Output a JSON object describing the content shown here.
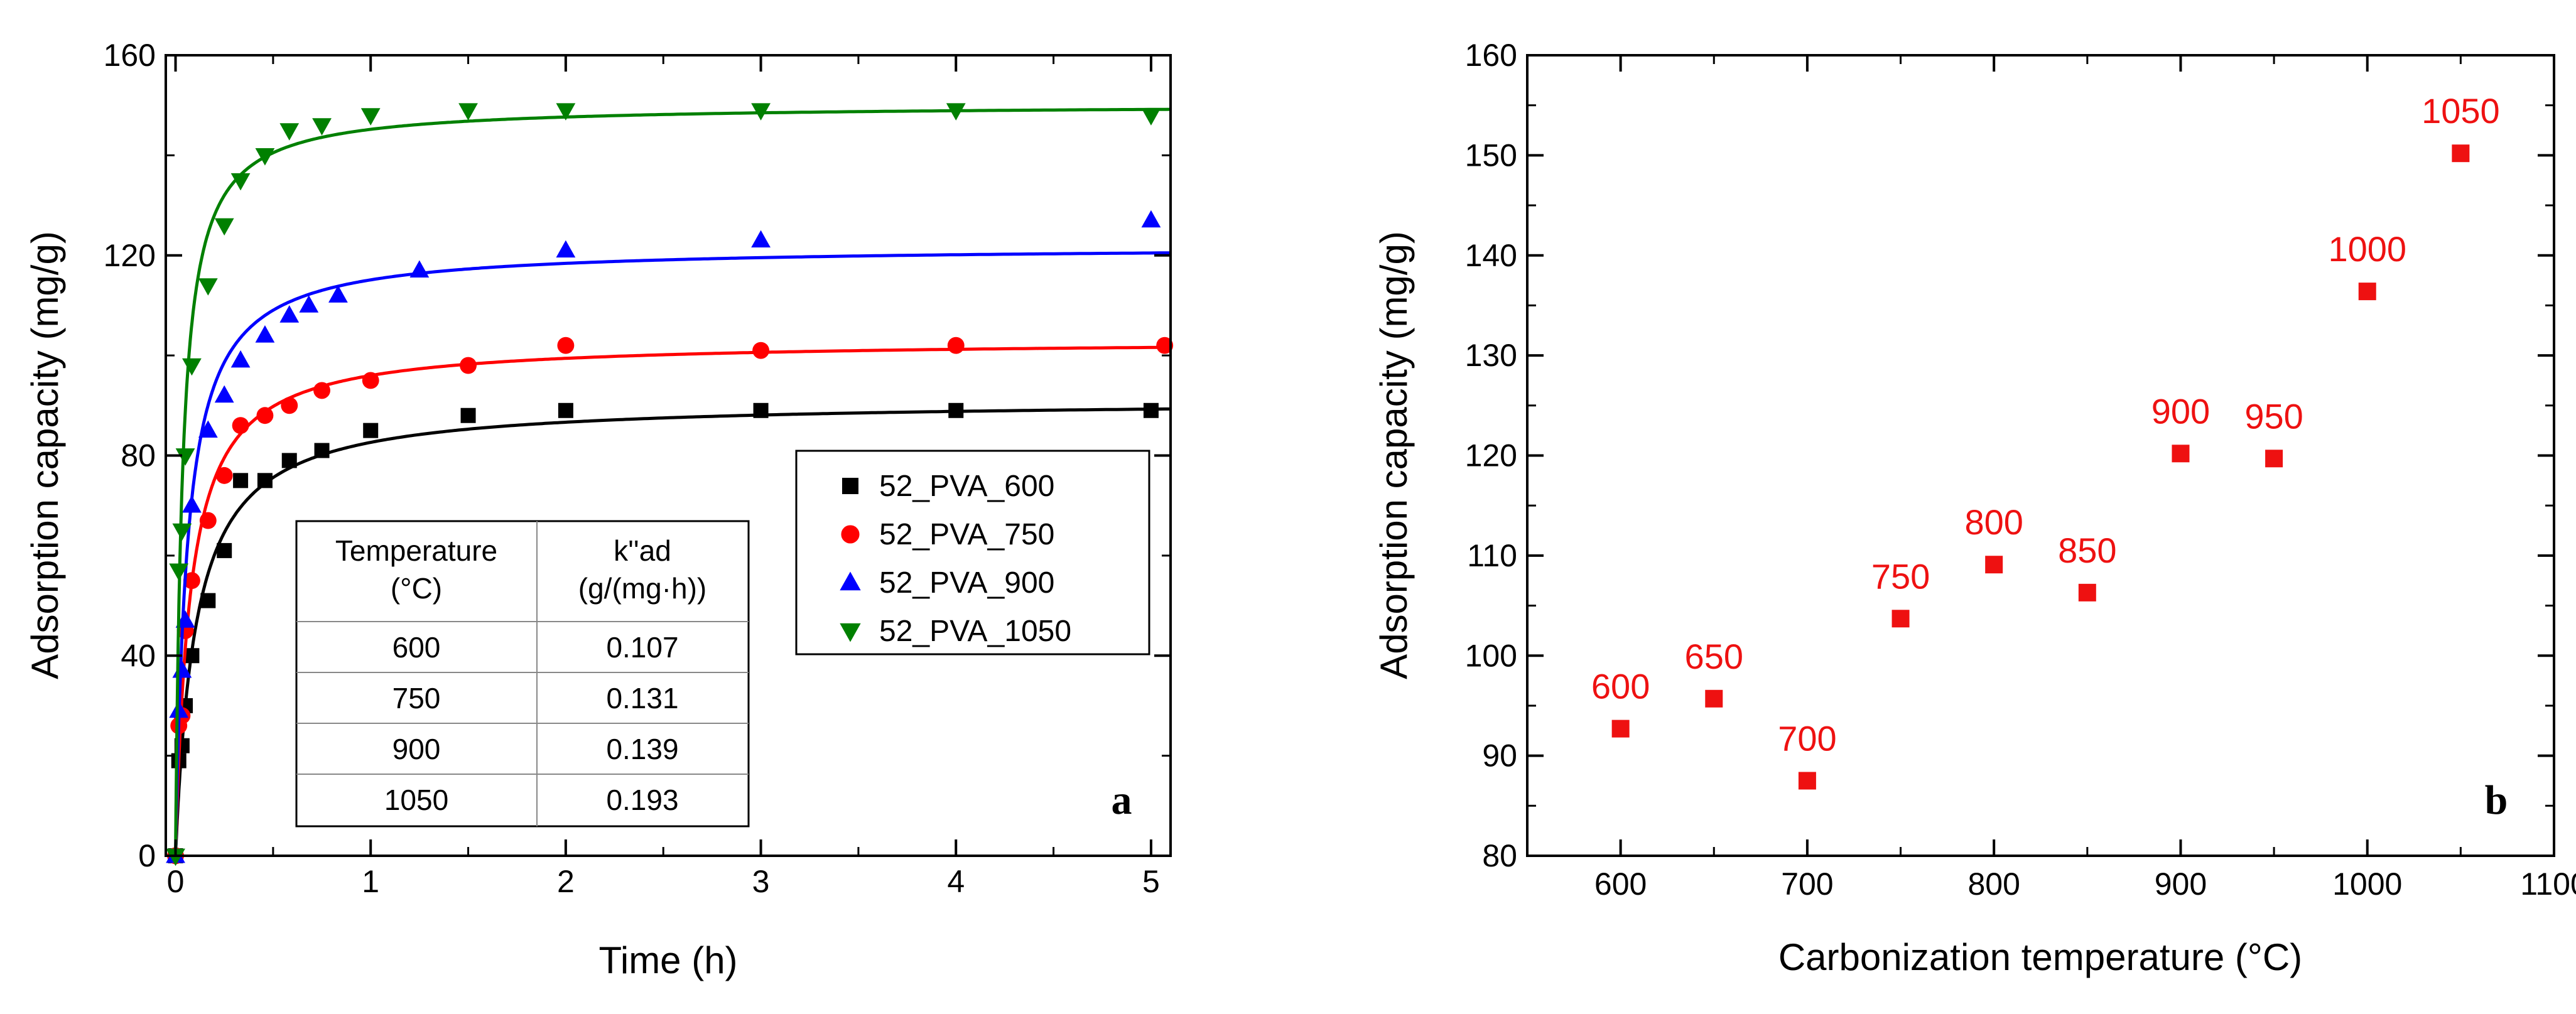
{
  "chart_data": [
    {
      "type": "scatter",
      "panel_label": "a",
      "xlabel": "Time (h)",
      "ylabel": "Adsorption capacity (mg/g)",
      "xlim": [
        -0.05,
        5.1
      ],
      "ylim": [
        0,
        160
      ],
      "xticks": [
        0,
        1,
        2,
        3,
        4,
        5
      ],
      "yticks": [
        0,
        40,
        80,
        120,
        160
      ],
      "x_tick_labels": [
        "0",
        "1",
        "2",
        "3",
        "4",
        "5"
      ],
      "y_tick_labels": [
        "0",
        "40",
        "80",
        "120",
        "160"
      ],
      "legend_position": "center-right",
      "series": [
        {
          "name": "52_PVA_600",
          "color": "#000000",
          "marker": "square",
          "qe": 91.1,
          "k": 0.107,
          "x": [
            0,
            0.0167,
            0.0333,
            0.05,
            0.0833,
            0.1667,
            0.25,
            0.3333,
            0.4583,
            0.5833,
            0.75,
            1,
            1.5,
            2,
            3,
            4,
            5
          ],
          "y": [
            0,
            19,
            22,
            30,
            40,
            51,
            61,
            75,
            75,
            79,
            81,
            85,
            88,
            89,
            89,
            89,
            89
          ]
        },
        {
          "name": "52_PVA_750",
          "color": "#ff0000",
          "marker": "circle",
          "qe": 103.1,
          "k": 0.131,
          "x": [
            0,
            0.0167,
            0.0333,
            0.05,
            0.0833,
            0.1667,
            0.25,
            0.3333,
            0.4583,
            0.5833,
            0.75,
            1,
            1.5,
            2,
            3,
            4,
            5.07
          ],
          "y": [
            0,
            26,
            28,
            45,
            55,
            67,
            76,
            86,
            88,
            90,
            93,
            95,
            98,
            102,
            101,
            102,
            102
          ]
        },
        {
          "name": "52_PVA_900",
          "color": "#0000ff",
          "marker": "triangle-up",
          "qe": 121.9,
          "k": 0.139,
          "x": [
            0,
            0.0167,
            0.0333,
            0.05,
            0.0833,
            0.1667,
            0.25,
            0.3333,
            0.4583,
            0.5833,
            0.6833,
            0.8333,
            1.25,
            2,
            3,
            5
          ],
          "y": [
            0,
            29,
            37,
            47,
            70,
            85,
            92,
            99,
            104,
            108,
            110,
            112,
            117,
            121,
            123,
            127
          ]
        },
        {
          "name": "52_PVA_1050",
          "color": "#008000",
          "marker": "triangle-down",
          "qe": 150.2,
          "k": 0.193,
          "x": [
            0,
            0.0167,
            0.0333,
            0.05,
            0.0833,
            0.1667,
            0.25,
            0.3333,
            0.4583,
            0.5833,
            0.75,
            1,
            1.5,
            2,
            3,
            4,
            5
          ],
          "y": [
            0,
            57,
            65,
            80,
            98,
            114,
            126,
            135,
            140,
            145,
            146,
            148,
            149,
            149,
            149,
            149,
            148
          ]
        }
      ],
      "table": {
        "header1": "Temperature",
        "header1_sub": "(°C)",
        "header2": "k''ad",
        "header2_sub": "(g/(mg·h))",
        "rows": [
          {
            "temp": "600",
            "k": "0.107"
          },
          {
            "temp": "750",
            "k": "0.131"
          },
          {
            "temp": "900",
            "k": "0.139"
          },
          {
            "temp": "1050",
            "k": "0.193"
          }
        ]
      }
    },
    {
      "type": "scatter",
      "panel_label": "b",
      "xlabel": "Carbonization temperature (°C)",
      "ylabel": "Adsorption capacity (mg/g)",
      "xlim": [
        550,
        1100
      ],
      "ylim": [
        80,
        160
      ],
      "xticks": [
        600,
        700,
        800,
        900,
        1000,
        1100
      ],
      "yticks": [
        80,
        90,
        100,
        110,
        120,
        130,
        140,
        150,
        160
      ],
      "x_tick_labels": [
        "600",
        "700",
        "800",
        "900",
        "1000",
        "1100"
      ],
      "y_tick_labels": [
        "80",
        "90",
        "100",
        "110",
        "120",
        "130",
        "140",
        "150",
        "160"
      ],
      "marker_color": "#ee1111",
      "points": [
        {
          "x": 600,
          "y": 92.7,
          "label": "600"
        },
        {
          "x": 650,
          "y": 95.7,
          "label": "650"
        },
        {
          "x": 700,
          "y": 87.5,
          "label": "700"
        },
        {
          "x": 750,
          "y": 103.7,
          "label": "750"
        },
        {
          "x": 800,
          "y": 109.1,
          "label": "800"
        },
        {
          "x": 850,
          "y": 106.3,
          "label": "850"
        },
        {
          "x": 900,
          "y": 120.2,
          "label": "900"
        },
        {
          "x": 950,
          "y": 119.7,
          "label": "950"
        },
        {
          "x": 1000,
          "y": 136.4,
          "label": "1000"
        },
        {
          "x": 1050,
          "y": 150.2,
          "label": "1050"
        }
      ]
    }
  ]
}
